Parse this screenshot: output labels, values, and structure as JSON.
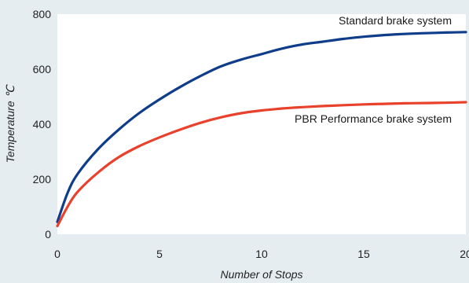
{
  "colors": {
    "background": "#e6edf1",
    "plot_background": "#ffffff",
    "standard": "#0f3d8a",
    "pbr": "#e8412c"
  },
  "chart_data": {
    "type": "line",
    "xlabel": "Number of Stops",
    "ylabel": "Temperature ℃",
    "xlim": [
      0,
      20
    ],
    "ylim": [
      0,
      800
    ],
    "xticks": [
      0,
      5,
      10,
      15,
      20
    ],
    "yticks": [
      0,
      200,
      400,
      600,
      800
    ],
    "grid": false,
    "series": [
      {
        "name": "Standard brake system",
        "color": "#0f3d8a",
        "x": [
          0,
          0.5,
          1,
          2,
          3,
          4,
          5,
          6,
          7,
          8,
          9,
          10,
          11,
          12,
          13,
          14,
          15,
          16,
          17,
          18,
          19,
          20
        ],
        "y": [
          45,
          150,
          220,
          310,
          380,
          440,
          490,
          535,
          575,
          610,
          635,
          655,
          675,
          690,
          700,
          710,
          718,
          724,
          728,
          731,
          733,
          735
        ]
      },
      {
        "name": "PBR Performance brake system",
        "color": "#e8412c",
        "x": [
          0,
          0.5,
          1,
          2,
          3,
          4,
          5,
          6,
          7,
          8,
          9,
          10,
          11,
          12,
          13,
          14,
          15,
          16,
          17,
          18,
          19,
          20
        ],
        "y": [
          30,
          100,
          155,
          225,
          280,
          320,
          352,
          380,
          405,
          425,
          440,
          450,
          457,
          462,
          466,
          469,
          472,
          474,
          476,
          477,
          478,
          480
        ]
      }
    ]
  }
}
